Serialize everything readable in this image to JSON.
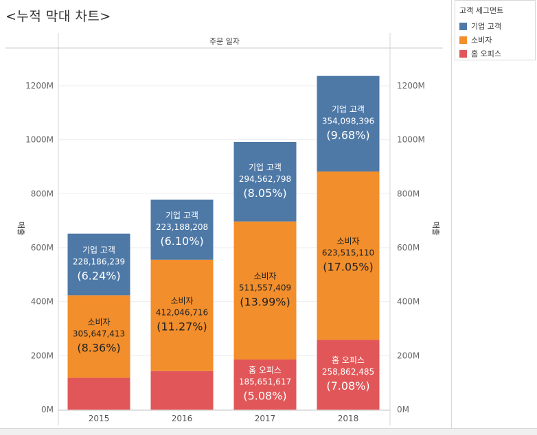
{
  "title": "<누적 막대 차트>",
  "column_header": "주문 일자",
  "axis_label": "매출",
  "legend": {
    "title": "고객 세그먼트",
    "items": [
      {
        "label": "기업 고객",
        "color": "#4e79a7"
      },
      {
        "label": "소비자",
        "color": "#f28e2b"
      },
      {
        "label": "홈 오피스",
        "color": "#e15759"
      }
    ]
  },
  "chart_data": {
    "type": "bar",
    "stacked": true,
    "categories": [
      "2015",
      "2016",
      "2017",
      "2018"
    ],
    "ylim": [
      0,
      1300000000
    ],
    "yticks": [
      0,
      200000000,
      400000000,
      600000000,
      800000000,
      1000000000,
      1200000000
    ],
    "ytick_labels": [
      "0M",
      "200M",
      "400M",
      "600M",
      "800M",
      "1000M",
      "1200M"
    ],
    "ylabel": "매출",
    "xlabel": "주문 일자",
    "legend_position": "right",
    "series": [
      {
        "name": "홈 오피스",
        "color": "#e15759",
        "values": [
          118000000,
          143000000,
          185651617,
          258862485
        ],
        "value_labels": [
          "",
          "",
          "185,651,617",
          "258,862,485"
        ],
        "pct_labels": [
          "",
          "",
          "(5.08%)",
          "(7.08%)"
        ]
      },
      {
        "name": "소비자",
        "color": "#f28e2b",
        "values": [
          305647413,
          412046716,
          511557409,
          623515110
        ],
        "value_labels": [
          "305,647,413",
          "412,046,716",
          "511,557,409",
          "623,515,110"
        ],
        "pct_labels": [
          "(8.36%)",
          "(11.27%)",
          "(13.99%)",
          "(17.05%)"
        ]
      },
      {
        "name": "기업 고객",
        "color": "#4e79a7",
        "values": [
          228186239,
          223188208,
          294562798,
          354098396
        ],
        "value_labels": [
          "228,186,239",
          "223,188,208",
          "294,562,798",
          "354,098,396"
        ],
        "pct_labels": [
          "(6.24%)",
          "(6.10%)",
          "(8.05%)",
          "(9.68%)"
        ]
      }
    ]
  }
}
